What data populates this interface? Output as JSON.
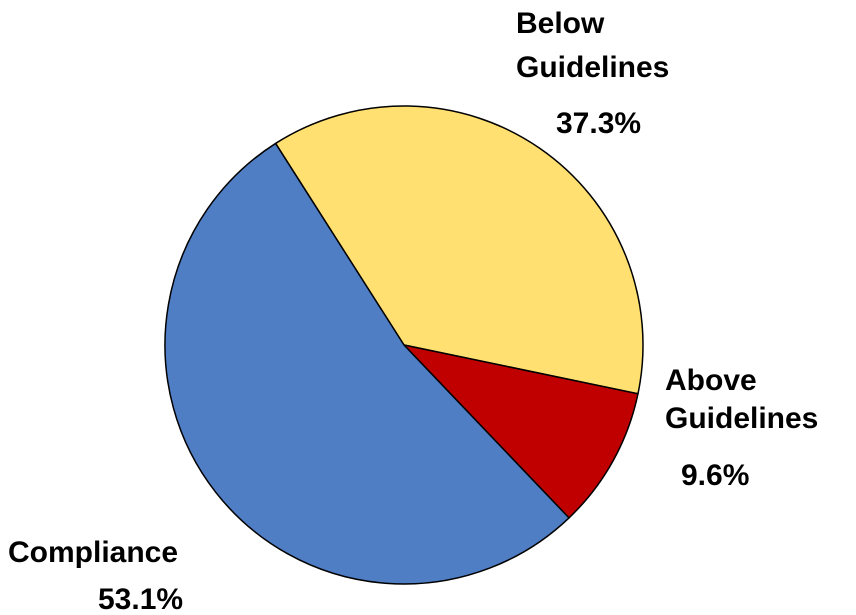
{
  "chart_data": {
    "type": "pie",
    "slices": [
      {
        "name": "Below Guidelines",
        "label_lines": [
          "Below",
          "Guidelines"
        ],
        "value": 37.3,
        "value_label": "37.3%",
        "color": "#FFE070"
      },
      {
        "name": "Above Guidelines",
        "label_lines": [
          "Above",
          "Guidelines"
        ],
        "value": 9.6,
        "value_label": "9.6%",
        "color": "#C00000"
      },
      {
        "name": "Compliance",
        "label_lines": [
          "Compliance"
        ],
        "value": 53.1,
        "value_label": "53.1%",
        "color": "#4F7EC5"
      }
    ],
    "edge_color": "#000000"
  }
}
